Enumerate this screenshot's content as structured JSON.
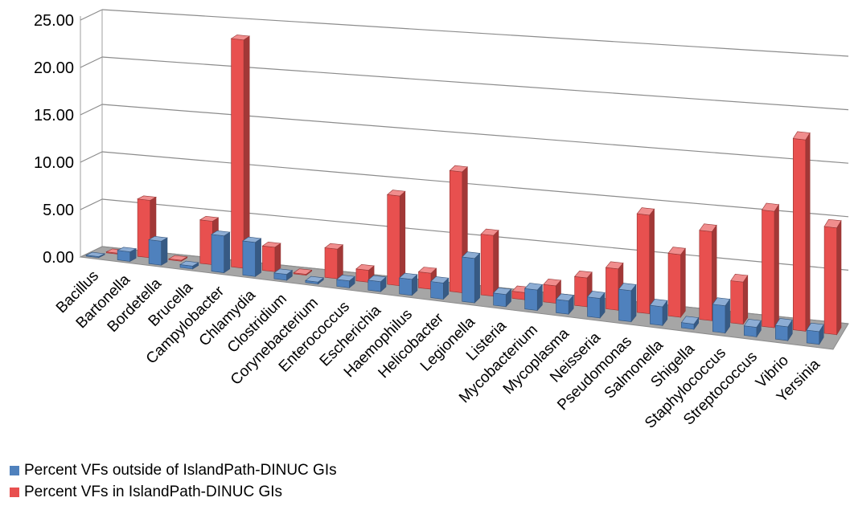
{
  "chart_data": {
    "type": "bar",
    "title": "",
    "xlabel": "",
    "ylabel": "",
    "ylim": [
      0,
      25
    ],
    "y_ticks": [
      "0.00",
      "5.00",
      "10.00",
      "15.00",
      "20.00",
      "25.00"
    ],
    "grid": true,
    "legend_placement": "bottom-left",
    "categories": [
      "Bacillus",
      "Bartonella",
      "Bordetella",
      "Brucella",
      "Campylobacter",
      "Chlamydia",
      "Clostridium",
      "Corynebacterium",
      "Enterococcus",
      "Escherichia",
      "Haemophilus",
      "Helicobacter",
      "Legionella",
      "Listeria",
      "Mycobacterium",
      "Mycoplasma",
      "Neisseria",
      "Pseudomonas",
      "Salmonella",
      "Shigella",
      "Staphylococcus",
      "Streptococcus",
      "Vibrio",
      "Yersinia"
    ],
    "series": [
      {
        "name": "Percent VFs outside of IslandPath-DINUC GIs",
        "color": "#4f81bd",
        "values": [
          0.1,
          1.0,
          2.5,
          0.3,
          3.8,
          3.5,
          0.6,
          0.2,
          0.7,
          1.0,
          1.6,
          1.6,
          4.4,
          1.2,
          2.0,
          1.3,
          1.9,
          3.0,
          1.8,
          0.5,
          2.6,
          0.9,
          1.3,
          1.2
        ]
      },
      {
        "name": "Percent VFs in IslandPath-DINUC GIs",
        "color": "#e8504f",
        "values": [
          0.1,
          6.0,
          0.1,
          4.5,
          23.5,
          2.5,
          0.1,
          3.0,
          1.2,
          9.0,
          1.6,
          12.0,
          6.0,
          0.7,
          1.7,
          2.8,
          4.0,
          9.5,
          6.0,
          8.5,
          4.0,
          11.0,
          18.0,
          10.0
        ]
      }
    ]
  }
}
